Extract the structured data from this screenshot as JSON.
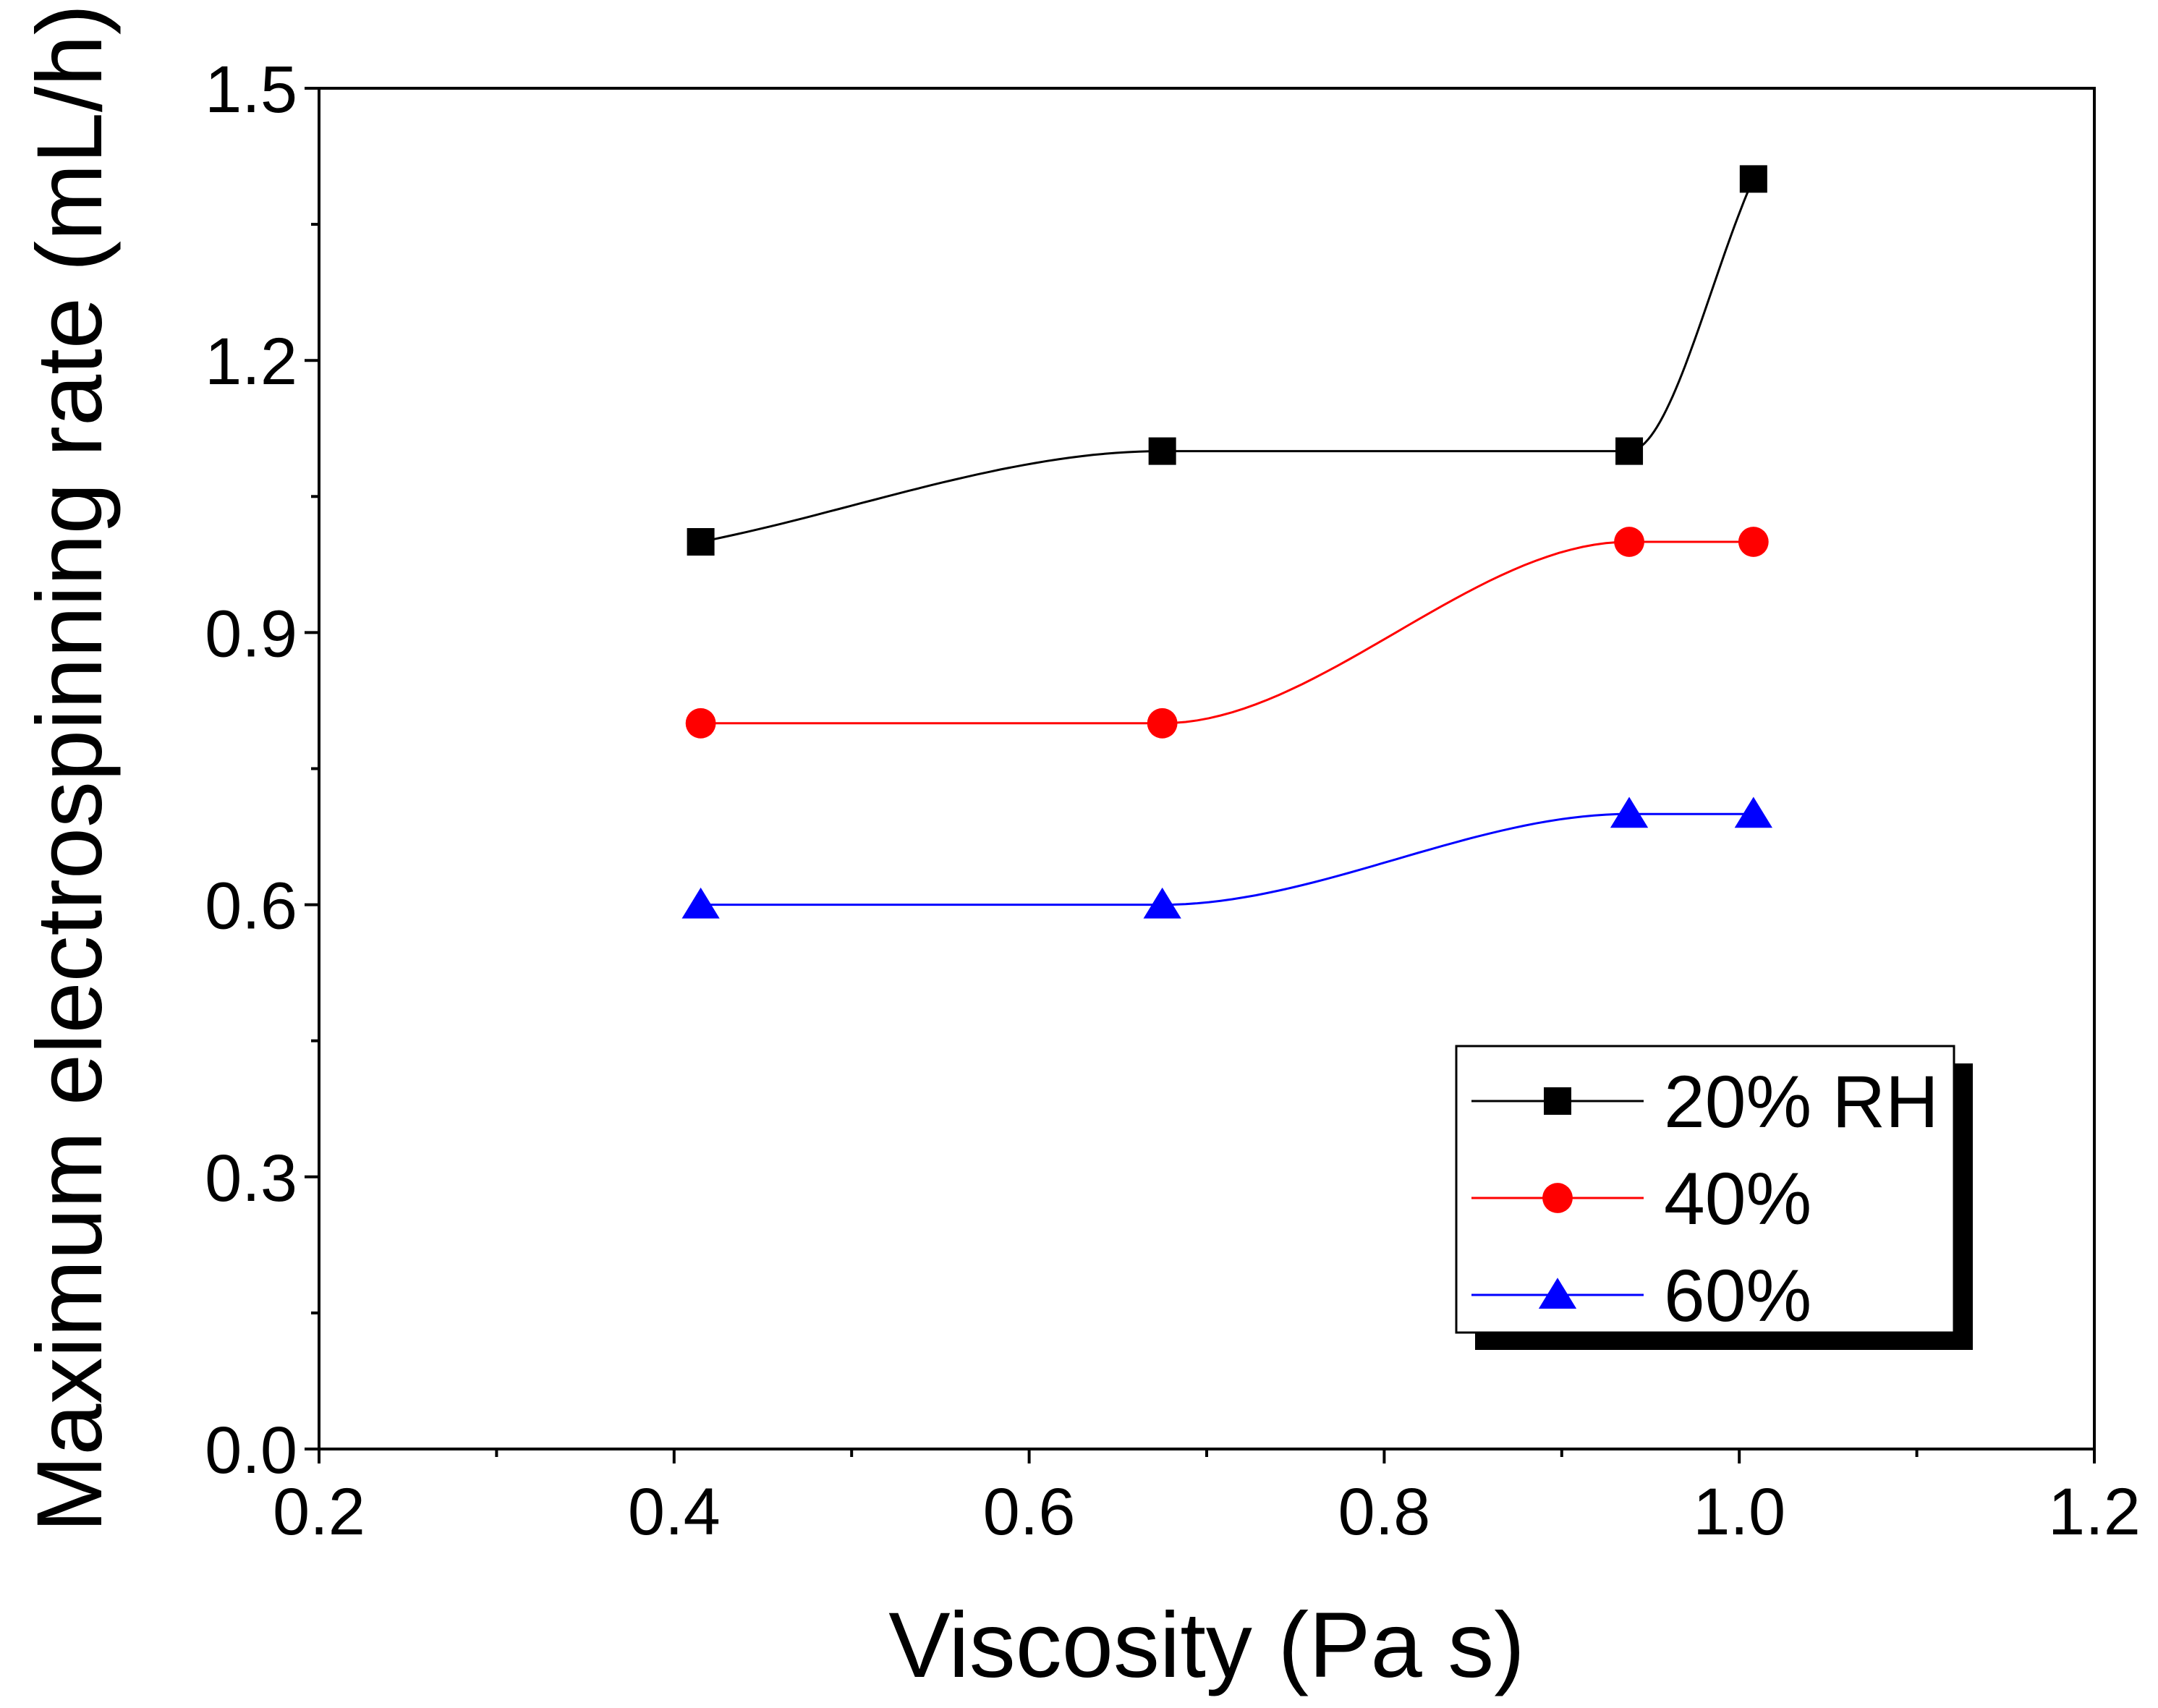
{
  "chart_data": {
    "type": "scatter",
    "title": "",
    "xlabel": "Viscosity (Pa s)",
    "ylabel": "Maximum electrospinning rate (mL/h)",
    "xlim": [
      0.2,
      1.2
    ],
    "ylim": [
      0.0,
      1.5
    ],
    "x_ticks": [
      "0.2",
      "0.4",
      "0.6",
      "0.8",
      "1.0",
      "1.2"
    ],
    "y_ticks": [
      "0.0",
      "0.3",
      "0.6",
      "0.9",
      "1.2",
      "1.5"
    ],
    "x": [
      0.415,
      0.675,
      0.938,
      1.008
    ],
    "series": [
      {
        "name": "20% RH",
        "color": "#000000",
        "marker": "square",
        "values": [
          1.0,
          1.1,
          1.1,
          1.4
        ]
      },
      {
        "name": "40%",
        "color": "#ff0000",
        "marker": "circle",
        "values": [
          0.8,
          0.8,
          1.0,
          1.0
        ]
      },
      {
        "name": "60%",
        "color": "#0000ff",
        "marker": "triangle",
        "values": [
          0.6,
          0.6,
          0.7,
          0.7
        ]
      }
    ],
    "legend_position": "bottom-right",
    "grid": false
  }
}
